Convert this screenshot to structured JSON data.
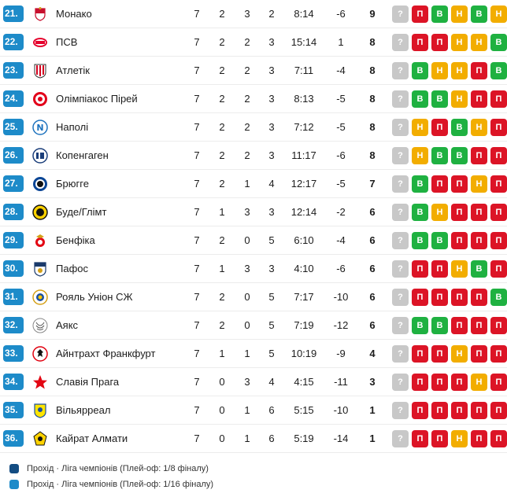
{
  "colors": {
    "rank_badge": "#1d8bc9",
    "win": "#1fb141",
    "draw": "#f2ad00",
    "loss": "#dc1426",
    "unknown": "#c8c8c8"
  },
  "rows": [
    {
      "rank": "21.",
      "team": "Монако",
      "logo": "monaco-logo-icon",
      "p": "7",
      "w": "2",
      "d": "3",
      "l": "2",
      "goals": "8:14",
      "diff": "-6",
      "pts": "9",
      "form": [
        {
          "t": "?",
          "k": "q"
        },
        {
          "t": "П",
          "k": "l"
        },
        {
          "t": "В",
          "k": "w"
        },
        {
          "t": "Н",
          "k": "d"
        },
        {
          "t": "В",
          "k": "w"
        },
        {
          "t": "Н",
          "k": "d"
        }
      ]
    },
    {
      "rank": "22.",
      "team": "ПСВ",
      "logo": "psv-logo-icon",
      "p": "7",
      "w": "2",
      "d": "2",
      "l": "3",
      "goals": "15:14",
      "diff": "1",
      "pts": "8",
      "form": [
        {
          "t": "?",
          "k": "q"
        },
        {
          "t": "П",
          "k": "l"
        },
        {
          "t": "П",
          "k": "l"
        },
        {
          "t": "Н",
          "k": "d"
        },
        {
          "t": "Н",
          "k": "d"
        },
        {
          "t": "В",
          "k": "w"
        }
      ]
    },
    {
      "rank": "23.",
      "team": "Атлетік",
      "logo": "athletic-logo-icon",
      "p": "7",
      "w": "2",
      "d": "2",
      "l": "3",
      "goals": "7:11",
      "diff": "-4",
      "pts": "8",
      "form": [
        {
          "t": "?",
          "k": "q"
        },
        {
          "t": "В",
          "k": "w"
        },
        {
          "t": "Н",
          "k": "d"
        },
        {
          "t": "Н",
          "k": "d"
        },
        {
          "t": "П",
          "k": "l"
        },
        {
          "t": "В",
          "k": "w"
        }
      ]
    },
    {
      "rank": "24.",
      "team": "Олімпіакос Пірей",
      "logo": "olympiacos-logo-icon",
      "p": "7",
      "w": "2",
      "d": "2",
      "l": "3",
      "goals": "8:13",
      "diff": "-5",
      "pts": "8",
      "form": [
        {
          "t": "?",
          "k": "q"
        },
        {
          "t": "В",
          "k": "w"
        },
        {
          "t": "В",
          "k": "w"
        },
        {
          "t": "Н",
          "k": "d"
        },
        {
          "t": "П",
          "k": "l"
        },
        {
          "t": "П",
          "k": "l"
        }
      ]
    },
    {
      "rank": "25.",
      "team": "Наполі",
      "logo": "napoli-logo-icon",
      "p": "7",
      "w": "2",
      "d": "2",
      "l": "3",
      "goals": "7:12",
      "diff": "-5",
      "pts": "8",
      "form": [
        {
          "t": "?",
          "k": "q"
        },
        {
          "t": "Н",
          "k": "d"
        },
        {
          "t": "П",
          "k": "l"
        },
        {
          "t": "В",
          "k": "w"
        },
        {
          "t": "Н",
          "k": "d"
        },
        {
          "t": "П",
          "k": "l"
        }
      ]
    },
    {
      "rank": "26.",
      "team": "Копенгаген",
      "logo": "copenhagen-logo-icon",
      "p": "7",
      "w": "2",
      "d": "2",
      "l": "3",
      "goals": "11:17",
      "diff": "-6",
      "pts": "8",
      "form": [
        {
          "t": "?",
          "k": "q"
        },
        {
          "t": "Н",
          "k": "d"
        },
        {
          "t": "В",
          "k": "w"
        },
        {
          "t": "В",
          "k": "w"
        },
        {
          "t": "П",
          "k": "l"
        },
        {
          "t": "П",
          "k": "l"
        }
      ]
    },
    {
      "rank": "27.",
      "team": "Брюгге",
      "logo": "brugge-logo-icon",
      "p": "7",
      "w": "2",
      "d": "1",
      "l": "4",
      "goals": "12:17",
      "diff": "-5",
      "pts": "7",
      "form": [
        {
          "t": "?",
          "k": "q"
        },
        {
          "t": "В",
          "k": "w"
        },
        {
          "t": "П",
          "k": "l"
        },
        {
          "t": "П",
          "k": "l"
        },
        {
          "t": "Н",
          "k": "d"
        },
        {
          "t": "П",
          "k": "l"
        }
      ]
    },
    {
      "rank": "28.",
      "team": "Буде/Глімт",
      "logo": "bodo-glimt-logo-icon",
      "p": "7",
      "w": "1",
      "d": "3",
      "l": "3",
      "goals": "12:14",
      "diff": "-2",
      "pts": "6",
      "form": [
        {
          "t": "?",
          "k": "q"
        },
        {
          "t": "В",
          "k": "w"
        },
        {
          "t": "Н",
          "k": "d"
        },
        {
          "t": "П",
          "k": "l"
        },
        {
          "t": "П",
          "k": "l"
        },
        {
          "t": "П",
          "k": "l"
        }
      ]
    },
    {
      "rank": "29.",
      "team": "Бенфіка",
      "logo": "benfica-logo-icon",
      "p": "7",
      "w": "2",
      "d": "0",
      "l": "5",
      "goals": "6:10",
      "diff": "-4",
      "pts": "6",
      "form": [
        {
          "t": "?",
          "k": "q"
        },
        {
          "t": "В",
          "k": "w"
        },
        {
          "t": "В",
          "k": "w"
        },
        {
          "t": "П",
          "k": "l"
        },
        {
          "t": "П",
          "k": "l"
        },
        {
          "t": "П",
          "k": "l"
        }
      ]
    },
    {
      "rank": "30.",
      "team": "Пафос",
      "logo": "pafos-logo-icon",
      "p": "7",
      "w": "1",
      "d": "3",
      "l": "3",
      "goals": "4:10",
      "diff": "-6",
      "pts": "6",
      "form": [
        {
          "t": "?",
          "k": "q"
        },
        {
          "t": "П",
          "k": "l"
        },
        {
          "t": "П",
          "k": "l"
        },
        {
          "t": "Н",
          "k": "d"
        },
        {
          "t": "В",
          "k": "w"
        },
        {
          "t": "П",
          "k": "l"
        }
      ]
    },
    {
      "rank": "31.",
      "team": "Рояль Уніон СЖ",
      "logo": "union-sg-logo-icon",
      "p": "7",
      "w": "2",
      "d": "0",
      "l": "5",
      "goals": "7:17",
      "diff": "-10",
      "pts": "6",
      "form": [
        {
          "t": "?",
          "k": "q"
        },
        {
          "t": "П",
          "k": "l"
        },
        {
          "t": "П",
          "k": "l"
        },
        {
          "t": "П",
          "k": "l"
        },
        {
          "t": "П",
          "k": "l"
        },
        {
          "t": "В",
          "k": "w"
        }
      ]
    },
    {
      "rank": "32.",
      "team": "Аякс",
      "logo": "ajax-logo-icon",
      "p": "7",
      "w": "2",
      "d": "0",
      "l": "5",
      "goals": "7:19",
      "diff": "-12",
      "pts": "6",
      "form": [
        {
          "t": "?",
          "k": "q"
        },
        {
          "t": "В",
          "k": "w"
        },
        {
          "t": "В",
          "k": "w"
        },
        {
          "t": "П",
          "k": "l"
        },
        {
          "t": "П",
          "k": "l"
        },
        {
          "t": "П",
          "k": "l"
        }
      ]
    },
    {
      "rank": "33.",
      "team": "Айнтрахт Франкфурт",
      "logo": "eintracht-logo-icon",
      "p": "7",
      "w": "1",
      "d": "1",
      "l": "5",
      "goals": "10:19",
      "diff": "-9",
      "pts": "4",
      "form": [
        {
          "t": "?",
          "k": "q"
        },
        {
          "t": "П",
          "k": "l"
        },
        {
          "t": "П",
          "k": "l"
        },
        {
          "t": "Н",
          "k": "d"
        },
        {
          "t": "П",
          "k": "l"
        },
        {
          "t": "П",
          "k": "l"
        }
      ]
    },
    {
      "rank": "34.",
      "team": "Славія Прага",
      "logo": "slavia-logo-icon",
      "p": "7",
      "w": "0",
      "d": "3",
      "l": "4",
      "goals": "4:15",
      "diff": "-11",
      "pts": "3",
      "form": [
        {
          "t": "?",
          "k": "q"
        },
        {
          "t": "П",
          "k": "l"
        },
        {
          "t": "П",
          "k": "l"
        },
        {
          "t": "П",
          "k": "l"
        },
        {
          "t": "Н",
          "k": "d"
        },
        {
          "t": "П",
          "k": "l"
        }
      ]
    },
    {
      "rank": "35.",
      "team": "Вільярреал",
      "logo": "villarreal-logo-icon",
      "p": "7",
      "w": "0",
      "d": "1",
      "l": "6",
      "goals": "5:15",
      "diff": "-10",
      "pts": "1",
      "form": [
        {
          "t": "?",
          "k": "q"
        },
        {
          "t": "П",
          "k": "l"
        },
        {
          "t": "П",
          "k": "l"
        },
        {
          "t": "П",
          "k": "l"
        },
        {
          "t": "П",
          "k": "l"
        },
        {
          "t": "П",
          "k": "l"
        }
      ]
    },
    {
      "rank": "36.",
      "team": "Кайрат Алмати",
      "logo": "kairat-logo-icon",
      "p": "7",
      "w": "0",
      "d": "1",
      "l": "6",
      "goals": "5:19",
      "diff": "-14",
      "pts": "1",
      "form": [
        {
          "t": "?",
          "k": "q"
        },
        {
          "t": "П",
          "k": "l"
        },
        {
          "t": "П",
          "k": "l"
        },
        {
          "t": "Н",
          "k": "d"
        },
        {
          "t": "П",
          "k": "l"
        },
        {
          "t": "П",
          "k": "l"
        }
      ]
    }
  ],
  "legend": [
    {
      "text": "Прохід · Ліга чемпіонів (Плей-оф: 1/8 фіналу)",
      "color": "#134c82"
    },
    {
      "text": "Прохід · Ліга чемпіонів (Плей-оф: 1/16 фіналу)",
      "color": "#1d8bc9"
    }
  ]
}
